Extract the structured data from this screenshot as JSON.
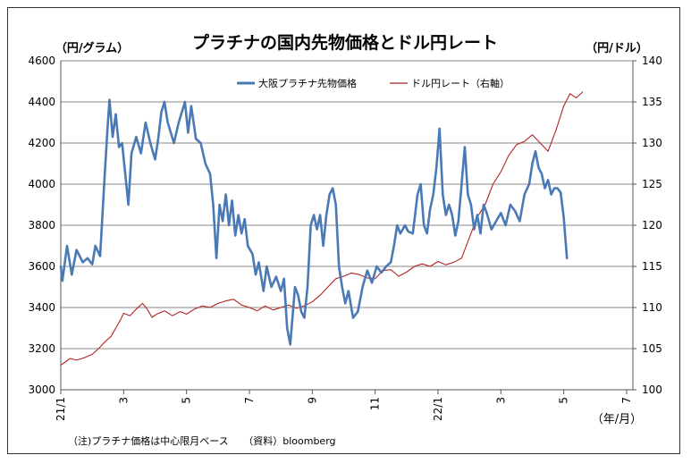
{
  "chart_data": {
    "type": "line",
    "title": "プラチナの国内先物価格とドル円レート",
    "left_axis_unit": "（円/グラム）",
    "right_axis_unit": "（円/ドル）",
    "x_axis_unit": "（年/月）",
    "note": "（注)プラチナ価格は中心限月ベース　　（資料）bloomberg",
    "ylim_left": [
      3000,
      4600
    ],
    "yticks_left": [
      3000,
      3200,
      3400,
      3600,
      3800,
      4000,
      4200,
      4400,
      4600
    ],
    "ylim_right": [
      100,
      140
    ],
    "yticks_right": [
      100,
      105,
      110,
      115,
      120,
      125,
      130,
      135,
      140
    ],
    "xlim": [
      0,
      18.2
    ],
    "x_ticks": [
      {
        "label": "21/1",
        "x": 0
      },
      {
        "label": "3",
        "x": 2
      },
      {
        "label": "5",
        "x": 4
      },
      {
        "label": "7",
        "x": 6
      },
      {
        "label": "9",
        "x": 8
      },
      {
        "label": "11",
        "x": 10
      },
      {
        "label": "22/1",
        "x": 12
      },
      {
        "label": "3",
        "x": 14
      },
      {
        "label": "5",
        "x": 16
      },
      {
        "label": "7",
        "x": 18
      }
    ],
    "grid": "horizontal",
    "legend_position": "top-center",
    "series": [
      {
        "name": "大阪プラチナ先物価格",
        "axis": "left",
        "color": "#4a7ab5",
        "points": [
          [
            0.0,
            3600
          ],
          [
            0.05,
            3530
          ],
          [
            0.2,
            3700
          ],
          [
            0.35,
            3560
          ],
          [
            0.5,
            3680
          ],
          [
            0.7,
            3620
          ],
          [
            0.85,
            3640
          ],
          [
            1.0,
            3610
          ],
          [
            1.1,
            3700
          ],
          [
            1.25,
            3650
          ],
          [
            1.4,
            4050
          ],
          [
            1.5,
            4300
          ],
          [
            1.55,
            4410
          ],
          [
            1.65,
            4230
          ],
          [
            1.75,
            4340
          ],
          [
            1.85,
            4180
          ],
          [
            1.95,
            4200
          ],
          [
            2.05,
            4050
          ],
          [
            2.15,
            3900
          ],
          [
            2.25,
            4150
          ],
          [
            2.4,
            4230
          ],
          [
            2.55,
            4150
          ],
          [
            2.7,
            4300
          ],
          [
            2.85,
            4200
          ],
          [
            3.0,
            4120
          ],
          [
            3.1,
            4220
          ],
          [
            3.2,
            4350
          ],
          [
            3.3,
            4400
          ],
          [
            3.4,
            4300
          ],
          [
            3.5,
            4250
          ],
          [
            3.6,
            4200
          ],
          [
            3.75,
            4300
          ],
          [
            3.85,
            4350
          ],
          [
            3.95,
            4400
          ],
          [
            4.05,
            4250
          ],
          [
            4.15,
            4380
          ],
          [
            4.3,
            4220
          ],
          [
            4.45,
            4200
          ],
          [
            4.6,
            4100
          ],
          [
            4.75,
            4050
          ],
          [
            4.85,
            3900
          ],
          [
            4.95,
            3640
          ],
          [
            5.05,
            3900
          ],
          [
            5.15,
            3820
          ],
          [
            5.25,
            3950
          ],
          [
            5.35,
            3800
          ],
          [
            5.45,
            3920
          ],
          [
            5.55,
            3750
          ],
          [
            5.65,
            3850
          ],
          [
            5.75,
            3760
          ],
          [
            5.85,
            3830
          ],
          [
            5.95,
            3700
          ],
          [
            6.1,
            3660
          ],
          [
            6.2,
            3560
          ],
          [
            6.3,
            3620
          ],
          [
            6.45,
            3480
          ],
          [
            6.55,
            3600
          ],
          [
            6.7,
            3500
          ],
          [
            6.85,
            3550
          ],
          [
            7.0,
            3480
          ],
          [
            7.1,
            3540
          ],
          [
            7.2,
            3300
          ],
          [
            7.3,
            3220
          ],
          [
            7.45,
            3500
          ],
          [
            7.55,
            3460
          ],
          [
            7.65,
            3380
          ],
          [
            7.75,
            3350
          ],
          [
            7.85,
            3500
          ],
          [
            7.95,
            3800
          ],
          [
            8.05,
            3850
          ],
          [
            8.15,
            3780
          ],
          [
            8.25,
            3850
          ],
          [
            8.35,
            3700
          ],
          [
            8.45,
            3850
          ],
          [
            8.55,
            3950
          ],
          [
            8.65,
            3980
          ],
          [
            8.75,
            3900
          ],
          [
            8.85,
            3600
          ],
          [
            8.95,
            3500
          ],
          [
            9.05,
            3420
          ],
          [
            9.15,
            3480
          ],
          [
            9.3,
            3350
          ],
          [
            9.45,
            3380
          ],
          [
            9.6,
            3500
          ],
          [
            9.75,
            3580
          ],
          [
            9.9,
            3520
          ],
          [
            10.05,
            3600
          ],
          [
            10.2,
            3570
          ],
          [
            10.35,
            3600
          ],
          [
            10.5,
            3620
          ],
          [
            10.6,
            3700
          ],
          [
            10.7,
            3800
          ],
          [
            10.8,
            3760
          ],
          [
            10.95,
            3800
          ],
          [
            11.05,
            3770
          ],
          [
            11.2,
            3760
          ],
          [
            11.35,
            3950
          ],
          [
            11.45,
            4000
          ],
          [
            11.55,
            3800
          ],
          [
            11.65,
            3760
          ],
          [
            11.75,
            3880
          ],
          [
            11.85,
            3950
          ],
          [
            11.95,
            4080
          ],
          [
            12.05,
            4270
          ],
          [
            12.15,
            3950
          ],
          [
            12.25,
            3850
          ],
          [
            12.35,
            3900
          ],
          [
            12.45,
            3850
          ],
          [
            12.55,
            3750
          ],
          [
            12.65,
            3820
          ],
          [
            12.75,
            4000
          ],
          [
            12.85,
            4180
          ],
          [
            12.95,
            3950
          ],
          [
            13.05,
            3900
          ],
          [
            13.15,
            3780
          ],
          [
            13.25,
            3850
          ],
          [
            13.35,
            3760
          ],
          [
            13.45,
            3900
          ],
          [
            13.55,
            3860
          ],
          [
            13.7,
            3780
          ],
          [
            13.85,
            3820
          ],
          [
            14.0,
            3860
          ],
          [
            14.15,
            3800
          ],
          [
            14.3,
            3900
          ],
          [
            14.45,
            3870
          ],
          [
            14.6,
            3820
          ],
          [
            14.75,
            3950
          ],
          [
            14.9,
            4000
          ],
          [
            15.0,
            4100
          ],
          [
            15.1,
            4160
          ],
          [
            15.2,
            4080
          ],
          [
            15.3,
            4050
          ],
          [
            15.4,
            3980
          ],
          [
            15.5,
            4020
          ],
          [
            15.6,
            3950
          ],
          [
            15.7,
            3980
          ],
          [
            15.8,
            3980
          ],
          [
            15.9,
            3960
          ],
          [
            16.0,
            3840
          ],
          [
            16.1,
            3640
          ]
        ]
      },
      {
        "name": "ドル円レート（右軸）",
        "axis": "right",
        "color": "#b22222",
        "points": [
          [
            0.0,
            103.0
          ],
          [
            0.3,
            103.8
          ],
          [
            0.5,
            103.6
          ],
          [
            0.75,
            103.9
          ],
          [
            1.0,
            104.3
          ],
          [
            1.2,
            105.0
          ],
          [
            1.4,
            105.8
          ],
          [
            1.6,
            106.5
          ],
          [
            1.75,
            107.5
          ],
          [
            1.9,
            108.5
          ],
          [
            2.0,
            109.3
          ],
          [
            2.2,
            109.0
          ],
          [
            2.4,
            109.8
          ],
          [
            2.6,
            110.5
          ],
          [
            2.75,
            109.8
          ],
          [
            2.9,
            108.8
          ],
          [
            3.05,
            109.2
          ],
          [
            3.3,
            109.6
          ],
          [
            3.55,
            109.0
          ],
          [
            3.8,
            109.5
          ],
          [
            4.0,
            109.2
          ],
          [
            4.25,
            109.8
          ],
          [
            4.5,
            110.2
          ],
          [
            4.75,
            110.0
          ],
          [
            5.0,
            110.5
          ],
          [
            5.25,
            110.8
          ],
          [
            5.5,
            111.0
          ],
          [
            5.75,
            110.3
          ],
          [
            6.0,
            110.0
          ],
          [
            6.25,
            109.6
          ],
          [
            6.5,
            110.2
          ],
          [
            6.75,
            109.7
          ],
          [
            7.0,
            110.0
          ],
          [
            7.25,
            110.3
          ],
          [
            7.5,
            109.9
          ],
          [
            7.75,
            110.2
          ],
          [
            8.0,
            110.7
          ],
          [
            8.25,
            111.5
          ],
          [
            8.5,
            112.5
          ],
          [
            8.75,
            113.5
          ],
          [
            9.0,
            113.8
          ],
          [
            9.25,
            114.2
          ],
          [
            9.5,
            114.0
          ],
          [
            9.75,
            113.6
          ],
          [
            10.0,
            113.5
          ],
          [
            10.25,
            114.5
          ],
          [
            10.5,
            114.6
          ],
          [
            10.75,
            113.8
          ],
          [
            11.0,
            114.3
          ],
          [
            11.25,
            115.0
          ],
          [
            11.5,
            115.3
          ],
          [
            11.75,
            115.0
          ],
          [
            12.0,
            115.6
          ],
          [
            12.25,
            115.2
          ],
          [
            12.5,
            115.5
          ],
          [
            12.75,
            116.0
          ],
          [
            13.0,
            118.5
          ],
          [
            13.25,
            121.0
          ],
          [
            13.5,
            122.5
          ],
          [
            13.75,
            125.0
          ],
          [
            14.0,
            126.5
          ],
          [
            14.25,
            128.5
          ],
          [
            14.5,
            129.8
          ],
          [
            14.75,
            130.2
          ],
          [
            15.0,
            131.0
          ],
          [
            15.25,
            130.0
          ],
          [
            15.5,
            129.0
          ],
          [
            15.75,
            131.5
          ],
          [
            16.0,
            134.5
          ],
          [
            16.2,
            136.0
          ],
          [
            16.4,
            135.5
          ],
          [
            16.6,
            136.2
          ]
        ]
      }
    ]
  }
}
